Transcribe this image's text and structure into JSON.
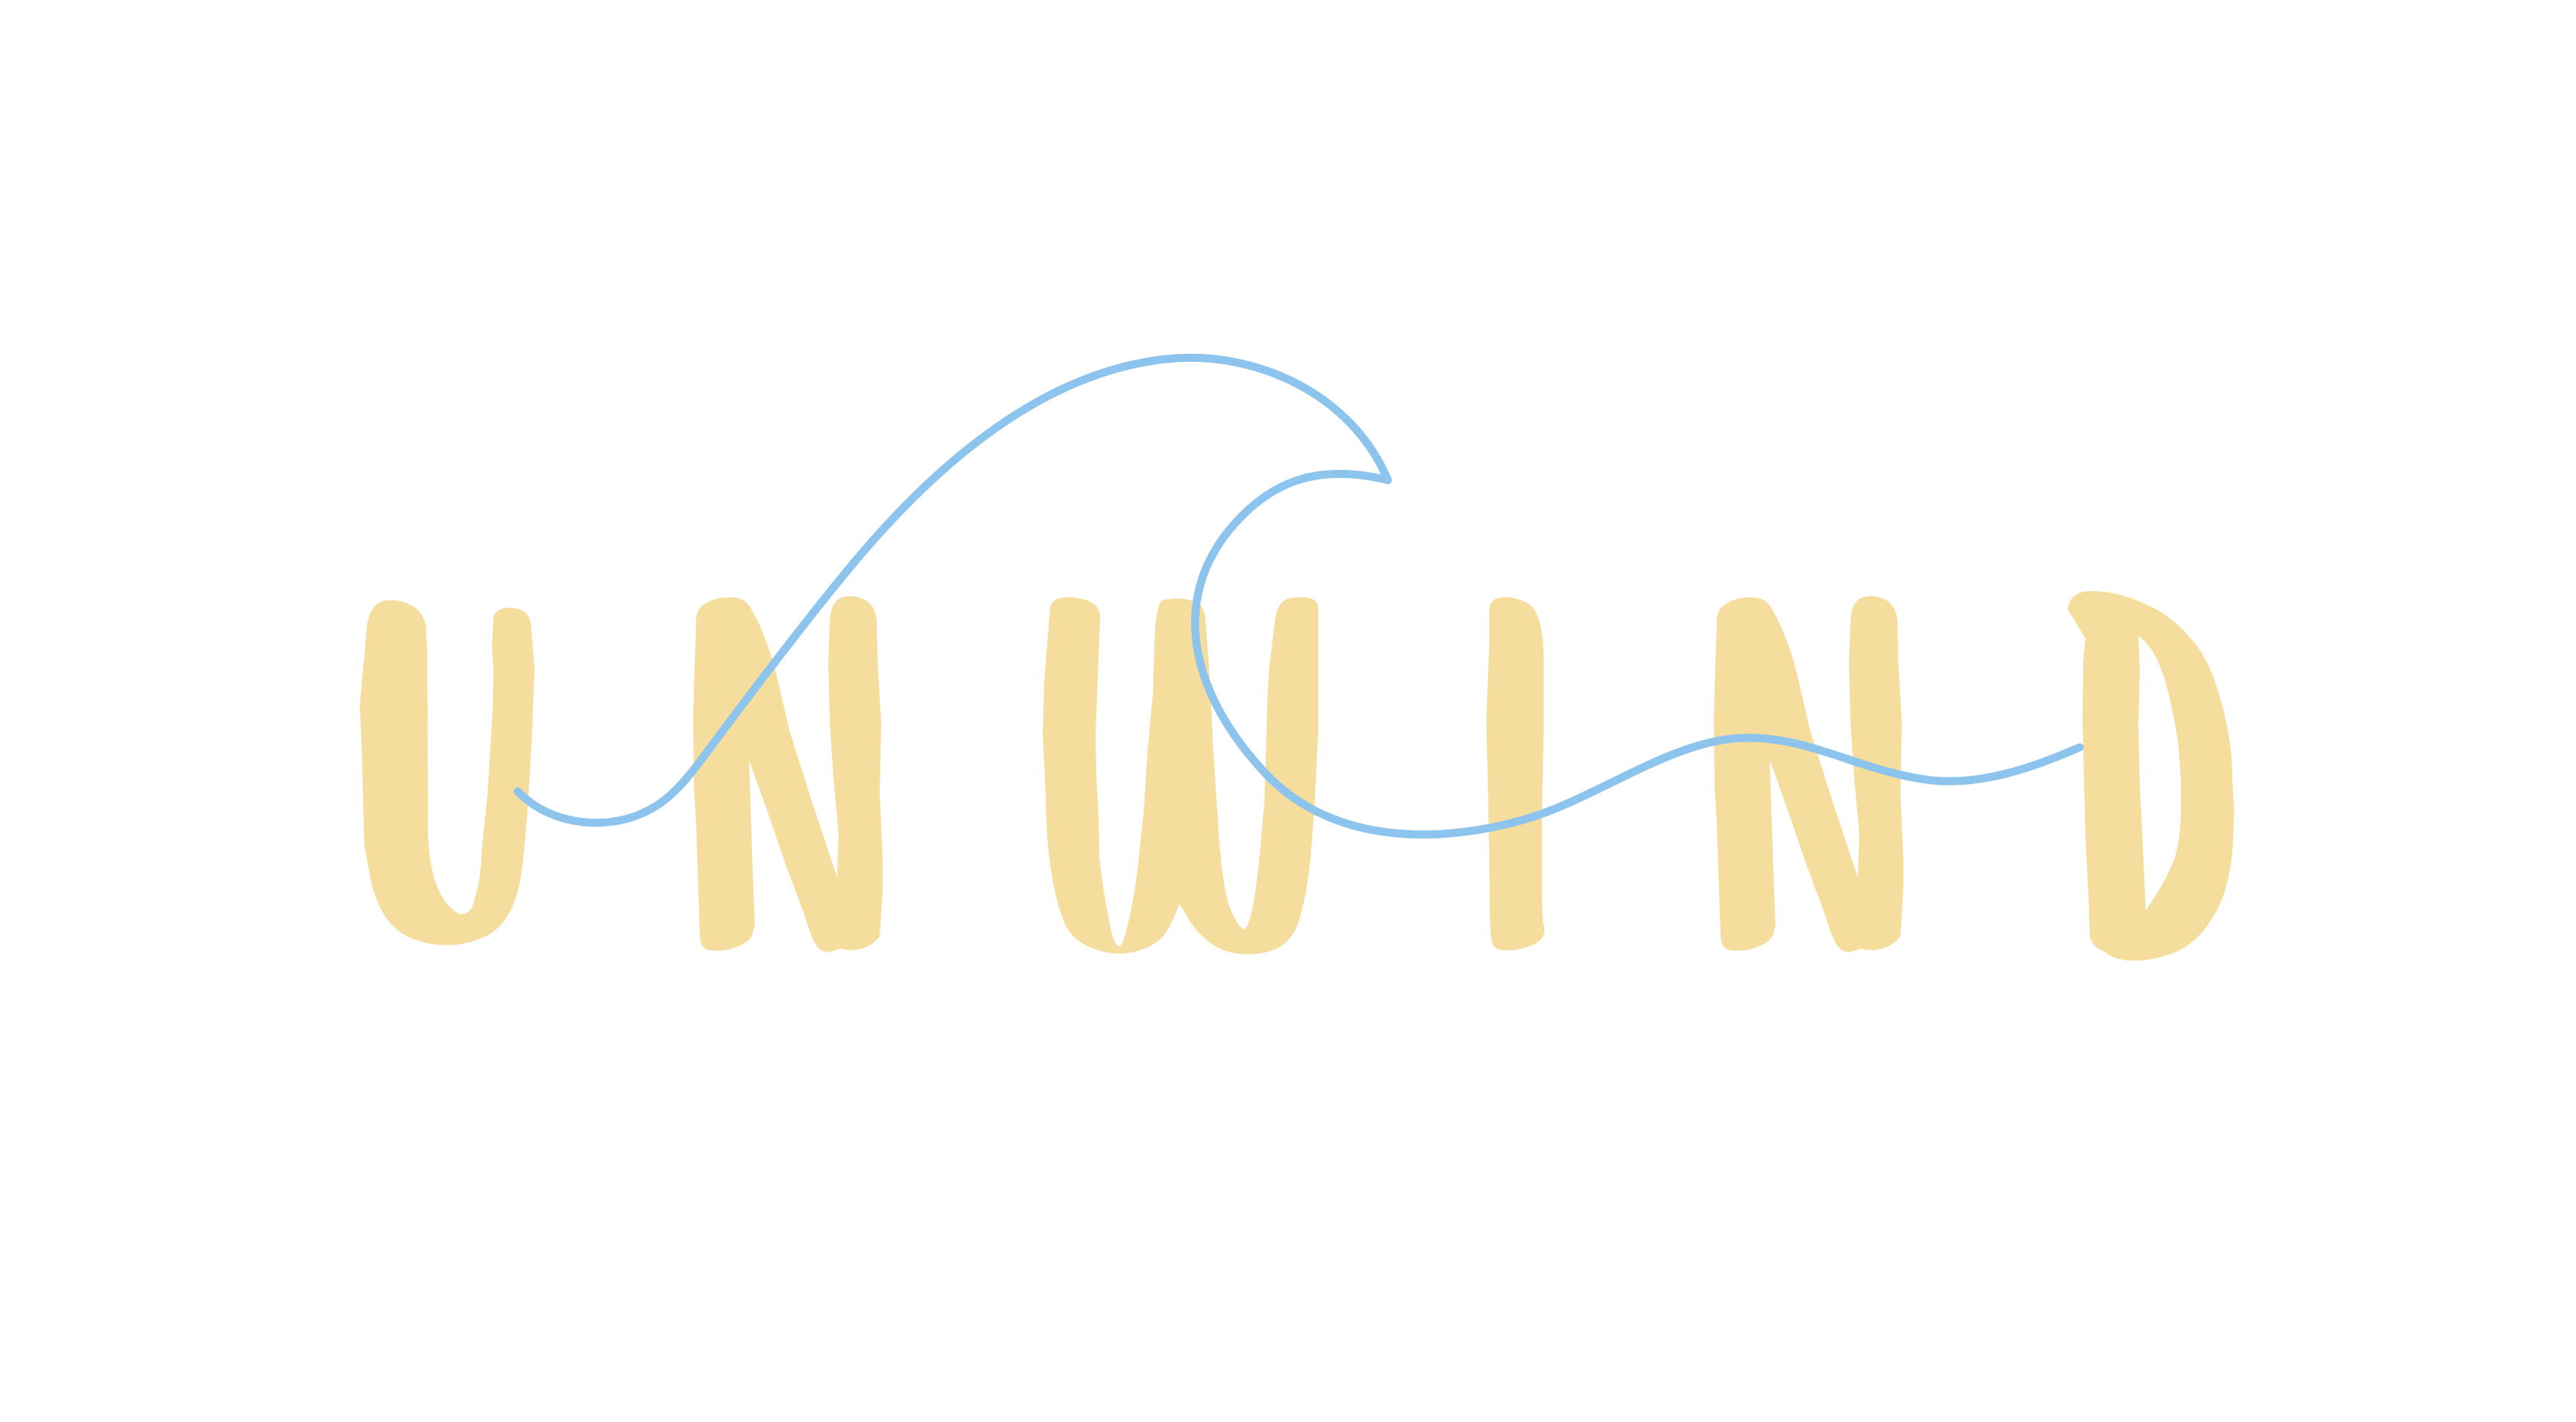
{
  "logo": {
    "word": "UNWIND",
    "colors": {
      "letters": "#f5dd9d",
      "wave": "#8dc4ee",
      "background": "#ffffff"
    }
  }
}
